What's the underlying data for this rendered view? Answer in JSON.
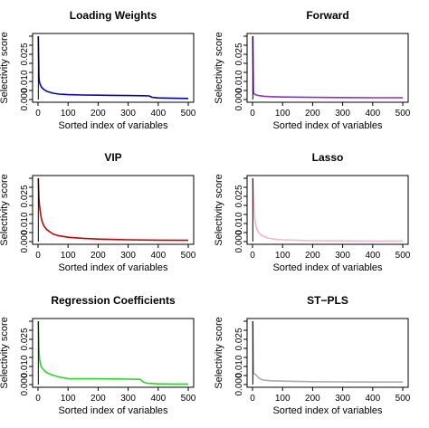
{
  "chart_data": [
    {
      "type": "line",
      "title": "Loading Weights",
      "xlabel": "Sorted index of variables",
      "ylabel": "Selectivity score",
      "xlim": [
        0,
        500
      ],
      "ylim": [
        0,
        0.035
      ],
      "xticks": [
        0,
        100,
        200,
        300,
        400,
        500
      ],
      "yticks": [
        0.0,
        0.01,
        0.025
      ],
      "ytick_labels": [
        "0.000",
        "0.010",
        "0.025"
      ],
      "color": "#0000cc",
      "series": [
        {
          "x": [
            1,
            3,
            5,
            8,
            12,
            20,
            30,
            50,
            70,
            100,
            150,
            200,
            250,
            300,
            350,
            370,
            380,
            400,
            450,
            500
          ],
          "y": [
            0.035,
            0.012,
            0.0095,
            0.008,
            0.0068,
            0.0055,
            0.0045,
            0.0035,
            0.003,
            0.0027,
            0.0025,
            0.0024,
            0.0023,
            0.0022,
            0.0021,
            0.002,
            0.0012,
            0.0009,
            0.0007,
            0.0006
          ]
        }
      ]
    },
    {
      "type": "line",
      "title": "Forward",
      "xlabel": "Sorted index of variables",
      "ylabel": "Selectivity score",
      "xlim": [
        0,
        500
      ],
      "ylim": [
        0,
        0.035
      ],
      "xticks": [
        0,
        100,
        200,
        300,
        400,
        500
      ],
      "yticks": [
        0.0,
        0.01,
        0.025
      ],
      "ytick_labels": [
        "0.000",
        "0.010",
        "0.025"
      ],
      "color": "#8a2be2",
      "series": [
        {
          "x": [
            1,
            3,
            5,
            10,
            20,
            40,
            60,
            100,
            200,
            300,
            400,
            500
          ],
          "y": [
            0.035,
            0.004,
            0.0032,
            0.0027,
            0.0022,
            0.0018,
            0.0016,
            0.0014,
            0.0012,
            0.0011,
            0.001,
            0.001
          ]
        }
      ]
    },
    {
      "type": "line",
      "title": "VIP",
      "xlabel": "Sorted index of variables",
      "ylabel": "Selectivity score",
      "xlim": [
        0,
        500
      ],
      "ylim": [
        0,
        0.035
      ],
      "xticks": [
        0,
        100,
        200,
        300,
        400,
        500
      ],
      "yticks": [
        0.0,
        0.01,
        0.025
      ],
      "ytick_labels": [
        "0.000",
        "0.010",
        "0.025"
      ],
      "color": "#cc0000",
      "series": [
        {
          "x": [
            1,
            3,
            5,
            8,
            12,
            20,
            30,
            50,
            70,
            100,
            150,
            200,
            300,
            400,
            500
          ],
          "y": [
            0.035,
            0.024,
            0.02,
            0.016,
            0.012,
            0.0085,
            0.0065,
            0.0042,
            0.0032,
            0.0024,
            0.0018,
            0.0014,
            0.001,
            0.0008,
            0.0007
          ]
        }
      ]
    },
    {
      "type": "line",
      "title": "Lasso",
      "xlabel": "Sorted index of variables",
      "ylabel": "Selectivity score",
      "xlim": [
        0,
        500
      ],
      "ylim": [
        0,
        0.035
      ],
      "xticks": [
        0,
        100,
        200,
        300,
        400,
        500
      ],
      "yticks": [
        0.0,
        0.01,
        0.025
      ],
      "ytick_labels": [
        "0.000",
        "0.010",
        "0.025"
      ],
      "color": "#f4b6c8",
      "series": [
        {
          "x": [
            1,
            3,
            5,
            8,
            12,
            20,
            30,
            50,
            80,
            100,
            150,
            200,
            300,
            400,
            500
          ],
          "y": [
            0.035,
            0.025,
            0.018,
            0.012,
            0.008,
            0.005,
            0.0035,
            0.002,
            0.0012,
            0.001,
            0.0007,
            0.0005,
            0.0004,
            0.0003,
            0.0003
          ]
        }
      ]
    },
    {
      "type": "line",
      "title": "Regression Coefficients",
      "xlabel": "Sorted index of variables",
      "ylabel": "Selectivity score",
      "xlim": [
        0,
        500
      ],
      "ylim": [
        0,
        0.035
      ],
      "xticks": [
        0,
        100,
        200,
        300,
        400,
        500
      ],
      "yticks": [
        0.0,
        0.01,
        0.025
      ],
      "ytick_labels": [
        "0.000",
        "0.010",
        "0.025"
      ],
      "color": "#22dd22",
      "series": [
        {
          "x": [
            1,
            3,
            5,
            10,
            20,
            30,
            50,
            70,
            90,
            100,
            150,
            200,
            250,
            300,
            340,
            350,
            360,
            400,
            450,
            500
          ],
          "y": [
            0.035,
            0.02,
            0.014,
            0.01,
            0.008,
            0.0065,
            0.0052,
            0.0042,
            0.0036,
            0.0033,
            0.0032,
            0.0032,
            0.0031,
            0.003,
            0.0029,
            0.0015,
            0.0008,
            0.0004,
            0.0003,
            0.0003
          ]
        }
      ]
    },
    {
      "type": "line",
      "title": "ST−PLS",
      "xlabel": "Sorted index of variables",
      "ylabel": "Selectivity score",
      "xlim": [
        0,
        500
      ],
      "ylim": [
        0,
        0.035
      ],
      "xticks": [
        0,
        100,
        200,
        300,
        400,
        500
      ],
      "yticks": [
        0.0,
        0.01,
        0.025
      ],
      "ytick_labels": [
        "0.000",
        "0.010",
        "0.025"
      ],
      "color": "#aaaaaa",
      "series": [
        {
          "x": [
            1,
            3,
            5,
            10,
            20,
            30,
            40,
            60,
            100,
            200,
            300,
            400,
            500
          ],
          "y": [
            0.035,
            0.007,
            0.006,
            0.0055,
            0.0038,
            0.0028,
            0.0024,
            0.0021,
            0.0019,
            0.0016,
            0.0015,
            0.0014,
            0.0014
          ]
        }
      ]
    }
  ]
}
